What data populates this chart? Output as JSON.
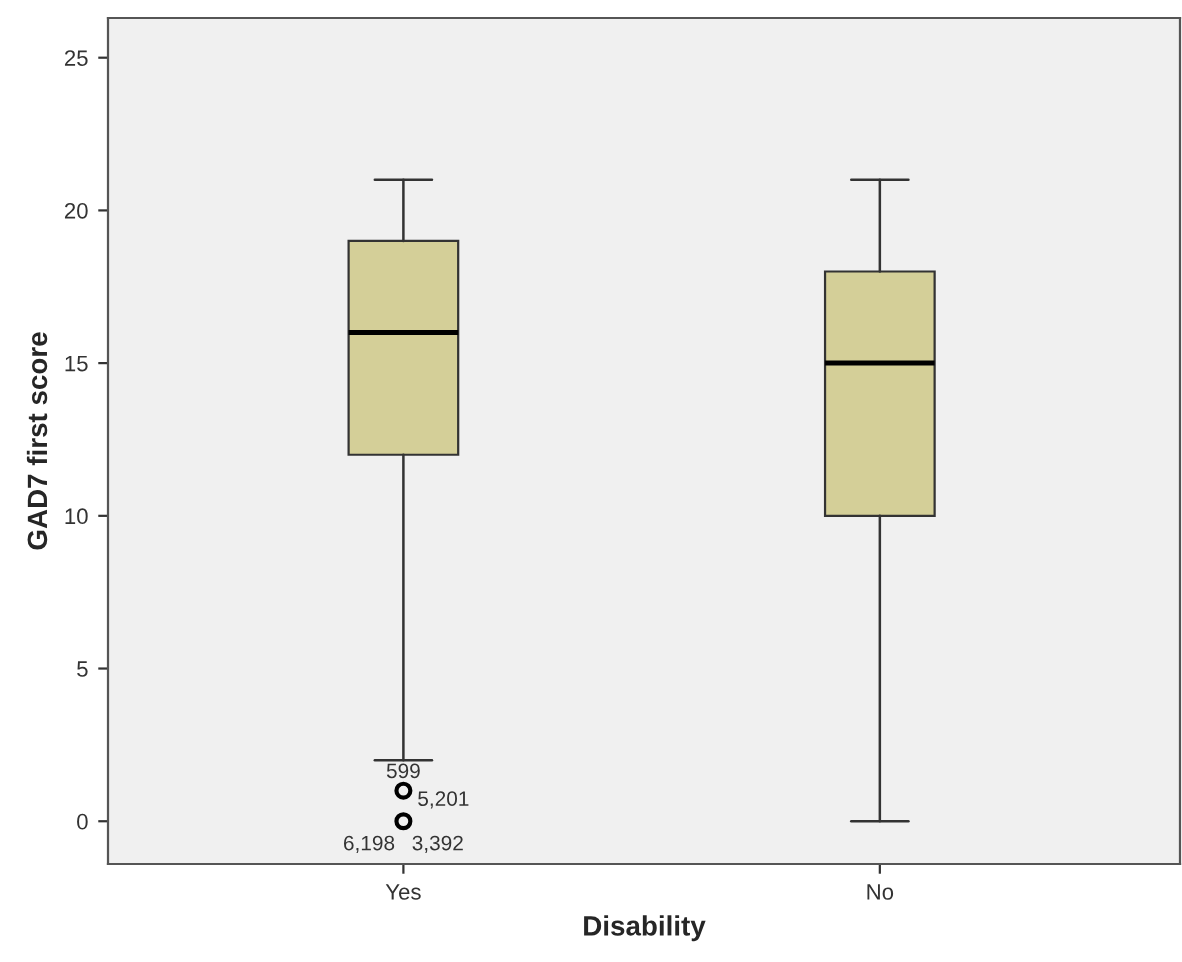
{
  "chart_data": {
    "type": "box",
    "xlabel": "Disability",
    "ylabel": "GAD7 first score",
    "categories": [
      "Yes",
      "No"
    ],
    "boxes": [
      {
        "low": 2,
        "q1": 12,
        "median": 16,
        "q3": 19,
        "high": 21,
        "outliers": [
          1,
          0
        ]
      },
      {
        "low": 0,
        "q1": 10,
        "median": 15,
        "q3": 18,
        "high": 21
      }
    ],
    "color": "#d4cf98",
    "ylim": [
      -1.4,
      26.3
    ],
    "yticks": [
      0,
      5,
      10,
      15,
      20,
      25
    ],
    "grid": false,
    "annotations": [
      "599",
      "5,201",
      "6,198",
      "3,392"
    ]
  }
}
